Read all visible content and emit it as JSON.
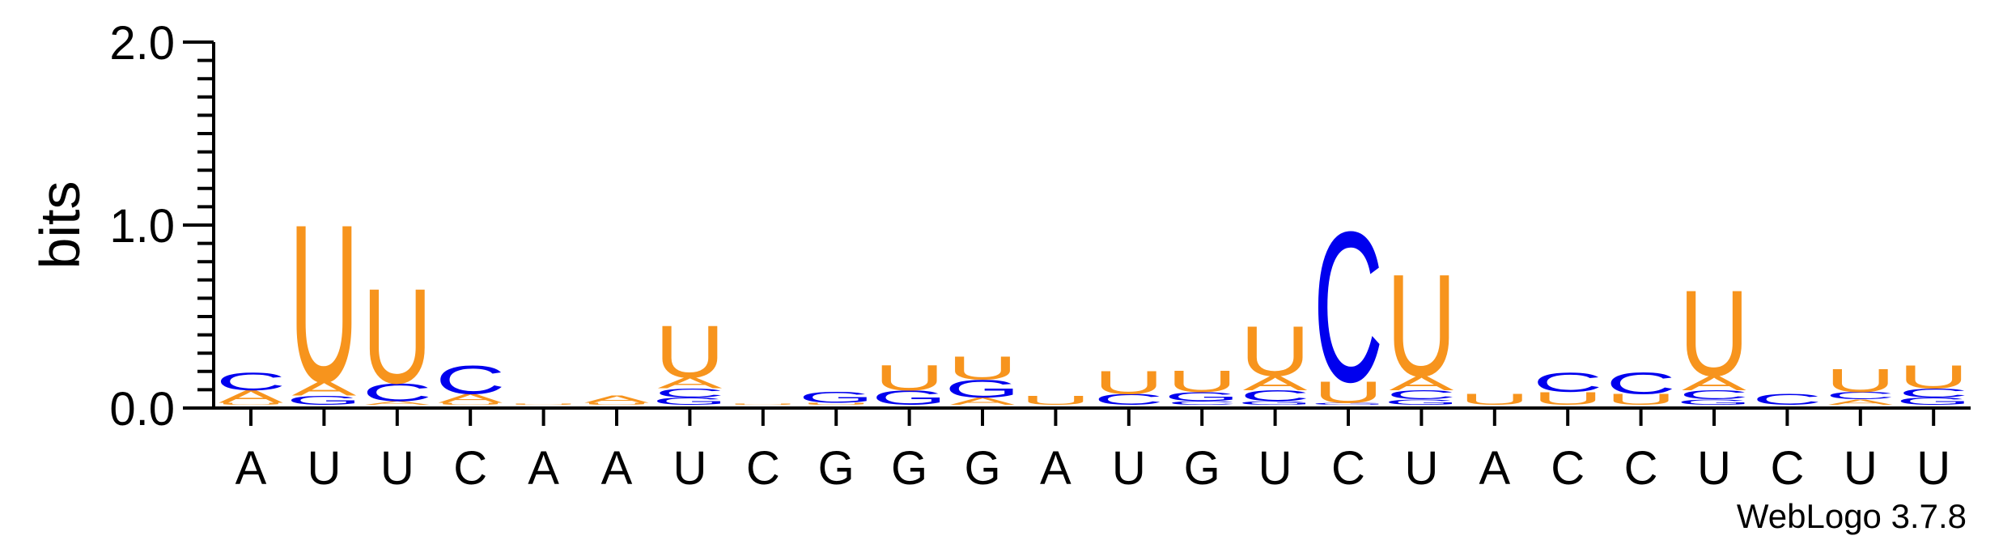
{
  "chart_data": {
    "type": "sequence-logo",
    "ylabel": "bits",
    "ylim": [
      0,
      2.0
    ],
    "yticks": [
      "0.0",
      "1.0",
      "2.0"
    ],
    "credit": "WebLogo 3.7.8",
    "colors": {
      "A": "#f7941d",
      "U": "#f7941d",
      "C": "#0000ee",
      "G": "#0000ee"
    },
    "positions": [
      {
        "label": "A",
        "stack": [
          [
            "U",
            0.01
          ],
          [
            "A",
            0.07
          ],
          [
            "C",
            0.1
          ]
        ]
      },
      {
        "label": "U",
        "stack": [
          [
            "G",
            0.05
          ],
          [
            "A",
            0.08
          ],
          [
            "U",
            0.88
          ]
        ]
      },
      {
        "label": "U",
        "stack": [
          [
            "A",
            0.02
          ],
          [
            "C",
            0.1
          ],
          [
            "U",
            0.53
          ]
        ]
      },
      {
        "label": "C",
        "stack": [
          [
            "U",
            0.01
          ],
          [
            "A",
            0.05
          ],
          [
            "C",
            0.16
          ]
        ]
      },
      {
        "label": "A",
        "stack": [
          [
            "U",
            0.005
          ]
        ]
      },
      {
        "label": "A",
        "stack": [
          [
            "U",
            0.01
          ],
          [
            "A",
            0.04
          ]
        ]
      },
      {
        "label": "U",
        "stack": [
          [
            "G",
            0.04
          ],
          [
            "C",
            0.05
          ],
          [
            "A",
            0.06
          ],
          [
            "U",
            0.29
          ]
        ]
      },
      {
        "label": "C",
        "stack": [
          [
            "U",
            0.005
          ]
        ]
      },
      {
        "label": "G",
        "stack": [
          [
            "U",
            0.01
          ],
          [
            "G",
            0.06
          ]
        ]
      },
      {
        "label": "G",
        "stack": [
          [
            "G",
            0.08
          ],
          [
            "U",
            0.14
          ]
        ]
      },
      {
        "label": "G",
        "stack": [
          [
            "A",
            0.04
          ],
          [
            "G",
            0.1
          ],
          [
            "U",
            0.13
          ]
        ]
      },
      {
        "label": "A",
        "stack": [
          [
            "U",
            0.05
          ]
        ]
      },
      {
        "label": "U",
        "stack": [
          [
            "C",
            0.06
          ],
          [
            "U",
            0.13
          ]
        ]
      },
      {
        "label": "G",
        "stack": [
          [
            "C",
            0.02
          ],
          [
            "G",
            0.05
          ],
          [
            "U",
            0.12
          ]
        ]
      },
      {
        "label": "U",
        "stack": [
          [
            "G",
            0.02
          ],
          [
            "C",
            0.06
          ],
          [
            "A",
            0.08
          ],
          [
            "U",
            0.28
          ]
        ]
      },
      {
        "label": "C",
        "stack": [
          [
            "G",
            0.01
          ],
          [
            "U",
            0.12
          ],
          [
            "C",
            0.84
          ]
        ]
      },
      {
        "label": "U",
        "stack": [
          [
            "G",
            0.03
          ],
          [
            "C",
            0.05
          ],
          [
            "A",
            0.08
          ],
          [
            "U",
            0.57
          ]
        ]
      },
      {
        "label": "A",
        "stack": [
          [
            "U",
            0.06
          ]
        ]
      },
      {
        "label": "C",
        "stack": [
          [
            "U",
            0.07
          ],
          [
            "C",
            0.11
          ]
        ]
      },
      {
        "label": "C",
        "stack": [
          [
            "U",
            0.06
          ],
          [
            "C",
            0.12
          ]
        ]
      },
      {
        "label": "U",
        "stack": [
          [
            "G",
            0.03
          ],
          [
            "C",
            0.05
          ],
          [
            "A",
            0.08
          ],
          [
            "U",
            0.48
          ]
        ]
      },
      {
        "label": "C",
        "stack": [
          [
            "C",
            0.06
          ]
        ]
      },
      {
        "label": "U",
        "stack": [
          [
            "A",
            0.03
          ],
          [
            "C",
            0.04
          ],
          [
            "U",
            0.13
          ]
        ]
      },
      {
        "label": "U",
        "stack": [
          [
            "G",
            0.04
          ],
          [
            "C",
            0.05
          ],
          [
            "U",
            0.13
          ]
        ]
      }
    ]
  }
}
